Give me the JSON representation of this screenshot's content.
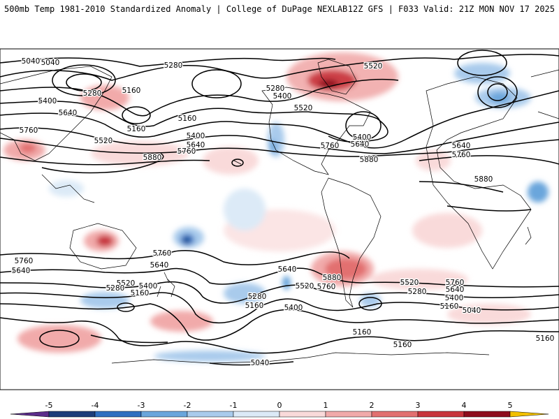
{
  "header": {
    "title_left": "500mb Temp 1981-2010 Standardized Anomaly | College of DuPage NEXLAB",
    "title_right": "12Z GFS | F033 Valid: 21Z MON NOV 17 2025"
  },
  "colorbar": {
    "ticks": [
      "-5",
      "-4",
      "-3",
      "-2",
      "-1",
      "0",
      "1",
      "2",
      "3",
      "4",
      "5"
    ],
    "colors": [
      "#5b2c8a",
      "#1d3d7a",
      "#2f6fc0",
      "#6aa6dc",
      "#a9cbec",
      "#dceaf7",
      "#f9dada",
      "#f1aaaa",
      "#e27070",
      "#c8343c",
      "#8d0c1c",
      "#f2c000"
    ]
  },
  "contour_labels": [
    {
      "text": "5040"
    },
    {
      "text": "5280"
    },
    {
      "text": "5160"
    },
    {
      "text": "5280"
    },
    {
      "text": "5400"
    },
    {
      "text": "5640"
    },
    {
      "text": "5760"
    },
    {
      "text": "5160"
    },
    {
      "text": "5160"
    },
    {
      "text": "5400"
    },
    {
      "text": "5520"
    },
    {
      "text": "5640"
    },
    {
      "text": "5760"
    },
    {
      "text": "5880"
    },
    {
      "text": "5280"
    },
    {
      "text": "5400"
    },
    {
      "text": "5520"
    },
    {
      "text": "5520"
    },
    {
      "text": "5760"
    },
    {
      "text": "5640"
    },
    {
      "text": "5400"
    },
    {
      "text": "5640"
    },
    {
      "text": "5760"
    },
    {
      "text": "5880"
    },
    {
      "text": "5880"
    },
    {
      "text": "5760"
    },
    {
      "text": "5640"
    },
    {
      "text": "5760"
    },
    {
      "text": "5640"
    },
    {
      "text": "5520"
    },
    {
      "text": "5400"
    },
    {
      "text": "5280"
    },
    {
      "text": "5160"
    },
    {
      "text": "5640"
    },
    {
      "text": "5520"
    },
    {
      "text": "5880"
    },
    {
      "text": "5760"
    },
    {
      "text": "5280"
    },
    {
      "text": "5160"
    },
    {
      "text": "5400"
    },
    {
      "text": "5040"
    },
    {
      "text": "5040"
    },
    {
      "text": "5160"
    },
    {
      "text": "5160"
    },
    {
      "text": "5520"
    },
    {
      "text": "5280"
    },
    {
      "text": "5760"
    },
    {
      "text": "5640"
    },
    {
      "text": "5400"
    },
    {
      "text": "5160"
    },
    {
      "text": "5040"
    },
    {
      "text": "5160"
    }
  ]
}
